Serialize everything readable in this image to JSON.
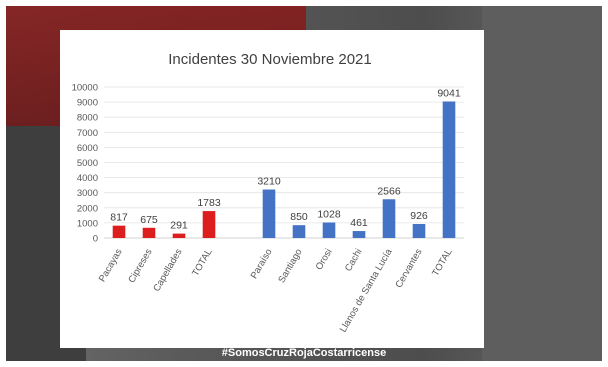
{
  "overlay": {
    "hashtag": "#SomosCruzRojaCostarricense"
  },
  "chart_data": {
    "type": "bar",
    "title": "Incidentes 30 Noviembre 2021",
    "xlabel": "",
    "ylabel": "",
    "ylim": [
      0,
      10000
    ],
    "yticks": [
      0,
      1000,
      2000,
      3000,
      4000,
      5000,
      6000,
      7000,
      8000,
      9000,
      10000
    ],
    "grid": true,
    "groups": [
      {
        "color": "#dc1e1e",
        "categories": [
          "Pacayas",
          "Cipreses",
          "Capellades",
          "TOTAL"
        ],
        "values": [
          817,
          675,
          291,
          1783
        ]
      },
      {
        "color": "#4472c4",
        "categories": [
          "Paraíso",
          "Santiago",
          "Orosi",
          "Cachi",
          "Llanos de Santa Lucía",
          "Cervantes",
          "TOTAL"
        ],
        "values": [
          3210,
          850,
          1028,
          461,
          2566,
          926,
          9041
        ]
      }
    ]
  }
}
